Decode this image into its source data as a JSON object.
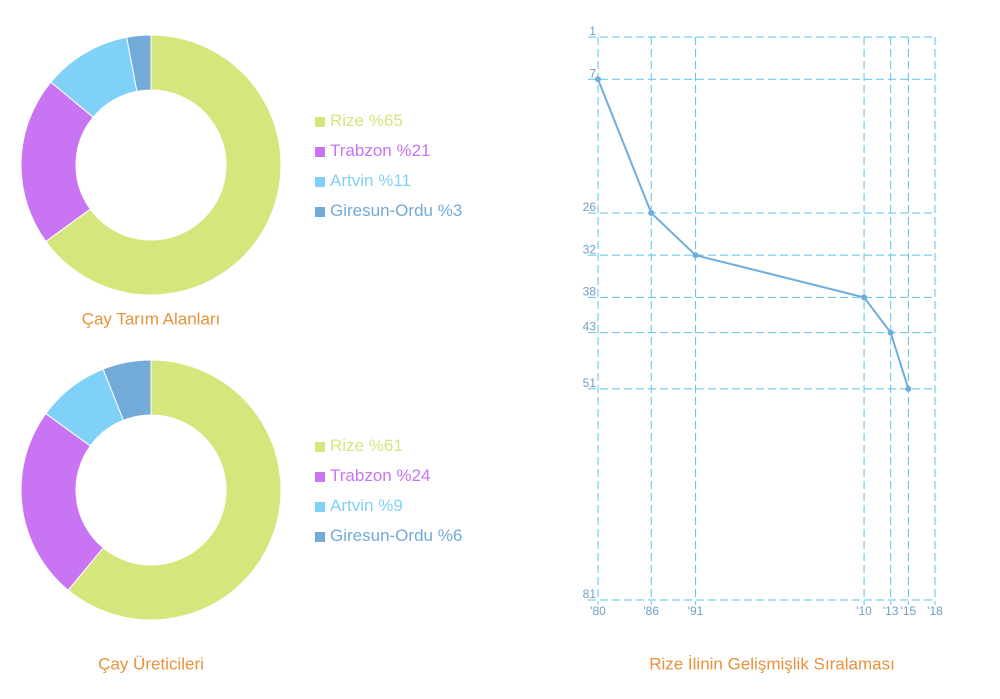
{
  "chart_data": [
    {
      "type": "donut",
      "title": "Çay Tarım Alanları",
      "categories": [
        "Rize",
        "Trabzon",
        "Artvin",
        "Giresun-Ordu"
      ],
      "values": [
        65,
        21,
        11,
        3
      ],
      "value_labels": [
        "%65",
        "%21",
        "%11",
        "%3"
      ],
      "colors": [
        "#d4e67c",
        "#c974f2",
        "#80d1f8",
        "#72aad8"
      ]
    },
    {
      "type": "donut",
      "title": "Çay Üreticileri",
      "categories": [
        "Rize",
        "Trabzon",
        "Artvin",
        "Giresun-Ordu"
      ],
      "values": [
        61,
        24,
        9,
        6
      ],
      "value_labels": [
        "%61",
        "%24",
        "%9",
        "%6"
      ],
      "colors": [
        "#d4e67c",
        "#c974f2",
        "#80d1f8",
        "#72aad8"
      ]
    },
    {
      "type": "line",
      "title": "Rize İlinin Gelişmişlik Sıralaması",
      "x": [
        1980,
        1986,
        1991,
        2010,
        2013,
        2015
      ],
      "values": [
        7,
        26,
        32,
        38,
        43,
        51
      ],
      "color": "#6eaedb",
      "xlim": [
        1980,
        2018
      ],
      "xticks": [
        {
          "value": 1980,
          "label": "'80"
        },
        {
          "value": 1986,
          "label": "'86"
        },
        {
          "value": 1991,
          "label": "'91"
        },
        {
          "value": 2010,
          "label": "'10"
        },
        {
          "value": 2013,
          "label": "'13"
        },
        {
          "value": 2015,
          "label": "'15"
        },
        {
          "value": 2018,
          "label": "'18"
        }
      ],
      "ylim": [
        1,
        81
      ],
      "yticks": [
        1,
        7,
        26,
        32,
        38,
        43,
        51,
        81
      ],
      "y_inverted": true,
      "grid": true
    }
  ]
}
